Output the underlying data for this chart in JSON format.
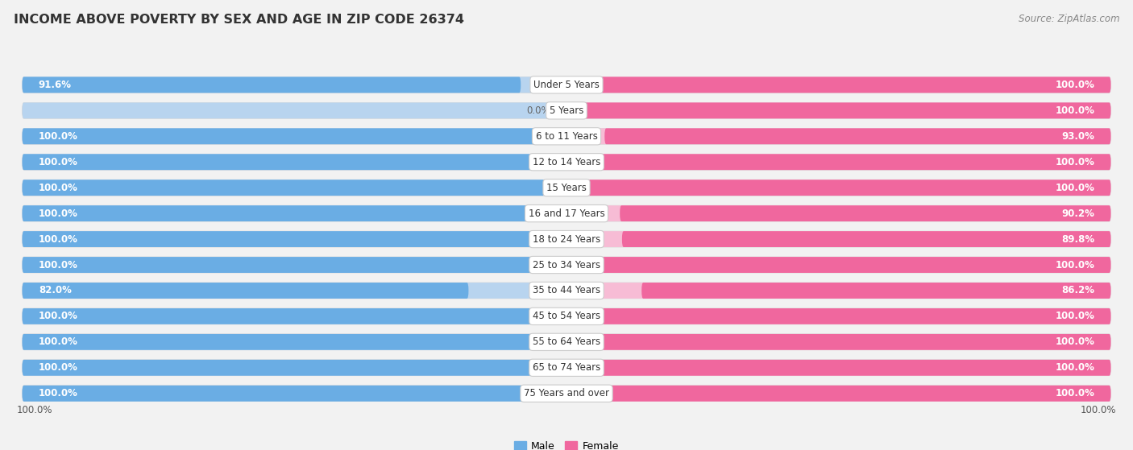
{
  "title": "INCOME ABOVE POVERTY BY SEX AND AGE IN ZIP CODE 26374",
  "source": "Source: ZipAtlas.com",
  "categories": [
    "Under 5 Years",
    "5 Years",
    "6 to 11 Years",
    "12 to 14 Years",
    "15 Years",
    "16 and 17 Years",
    "18 to 24 Years",
    "25 to 34 Years",
    "35 to 44 Years",
    "45 to 54 Years",
    "55 to 64 Years",
    "65 to 74 Years",
    "75 Years and over"
  ],
  "male_values": [
    91.6,
    0.0,
    100.0,
    100.0,
    100.0,
    100.0,
    100.0,
    100.0,
    82.0,
    100.0,
    100.0,
    100.0,
    100.0
  ],
  "female_values": [
    100.0,
    100.0,
    93.0,
    100.0,
    100.0,
    90.2,
    89.8,
    100.0,
    86.2,
    100.0,
    100.0,
    100.0,
    100.0
  ],
  "male_color": "#6aade4",
  "male_color_light": "#b8d4ef",
  "female_color": "#f0679e",
  "female_color_light": "#f7bcd5",
  "bg_color": "#f2f2f2",
  "bar_bg_color": "#e8e8e8",
  "row_bg_color": "#ffffff",
  "title_fontsize": 11.5,
  "label_fontsize": 8.5,
  "value_fontsize": 8.5,
  "source_fontsize": 8.5,
  "legend_label_male": "Male",
  "legend_label_female": "Female",
  "bottom_labels_male": "100.0%",
  "bottom_labels_female": "100.0%"
}
